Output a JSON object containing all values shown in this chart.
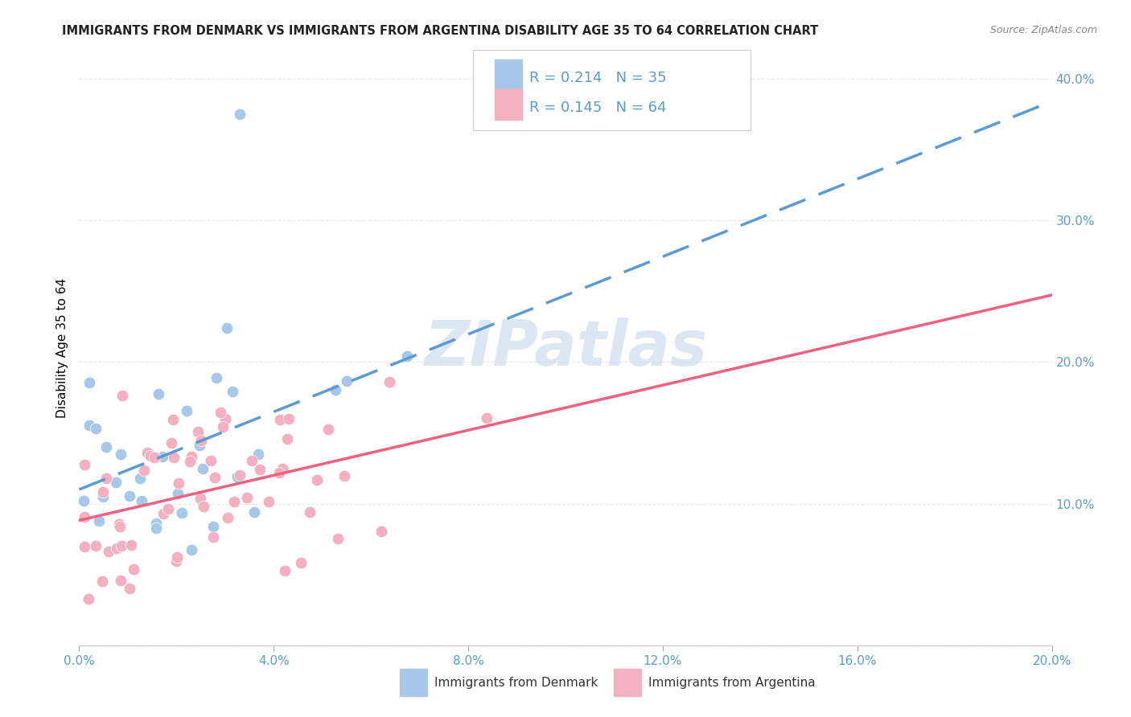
{
  "title": "IMMIGRANTS FROM DENMARK VS IMMIGRANTS FROM ARGENTINA DISABILITY AGE 35 TO 64 CORRELATION CHART",
  "source": "Source: ZipAtlas.com",
  "ylabel": "Disability Age 35 to 64",
  "xlim": [
    0.0,
    0.2
  ],
  "ylim": [
    0.0,
    0.42
  ],
  "denmark_color": "#a8c8ea",
  "argentina_color": "#f4afc0",
  "denmark_line_color": "#5b9bd5",
  "argentina_line_color": "#f06080",
  "text_color": "#5b9bd5",
  "denmark_R": "0.214",
  "denmark_N": "35",
  "argentina_R": "0.145",
  "argentina_N": "64",
  "watermark": "ZIPatlas",
  "background_color": "#ffffff",
  "grid_color": "#e8e8e8"
}
